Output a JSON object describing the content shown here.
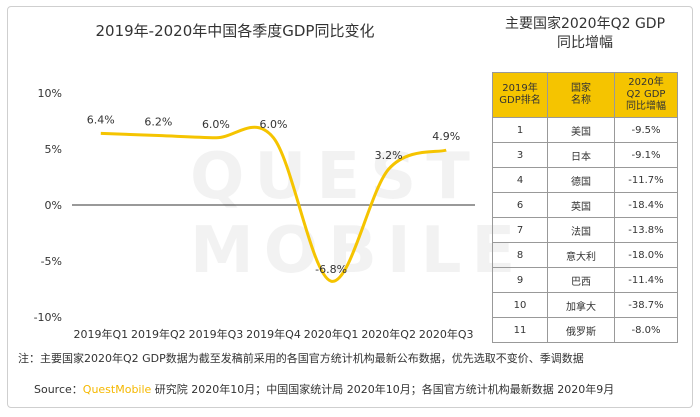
{
  "chart_data": {
    "type": "line",
    "title": "2019年-2020年中国各季度GDP同比变化",
    "categories": [
      "2019年Q1",
      "2019年Q2",
      "2019年Q3",
      "2019年Q4",
      "2020年Q1",
      "2020年Q2",
      "2020年Q3"
    ],
    "series": [
      {
        "values": [
          6.4,
          6.2,
          6.0,
          6.0,
          -6.8,
          3.2,
          4.9
        ]
      }
    ],
    "data_labels": [
      "6.4%",
      "6.2%",
      "6.0%",
      "6.0%",
      "-6.8%",
      "3.2%",
      "4.9%"
    ],
    "y_ticks": [
      "10%",
      "5%",
      "0%",
      "-5%",
      "-10%"
    ],
    "ylim": [
      -10,
      10
    ],
    "line_color": "#f5c400",
    "grid": false
  },
  "table": {
    "title_line1": "主要国家2020年Q2 GDP",
    "title_line2": "同比增幅",
    "headers": [
      [
        "2019年",
        "GDP排名"
      ],
      [
        "国家",
        "名称"
      ],
      [
        "2020年",
        "Q2 GDP",
        "同比增幅"
      ]
    ],
    "rows": [
      [
        "1",
        "美国",
        "-9.5%"
      ],
      [
        "3",
        "日本",
        "-9.1%"
      ],
      [
        "4",
        "德国",
        "-11.7%"
      ],
      [
        "6",
        "英国",
        "-18.4%"
      ],
      [
        "7",
        "法国",
        "-13.8%"
      ],
      [
        "8",
        "意大利",
        "-18.0%"
      ],
      [
        "9",
        "巴西",
        "-11.4%"
      ],
      [
        "10",
        "加拿大",
        "-38.7%"
      ],
      [
        "11",
        "俄罗斯",
        "-8.0%"
      ]
    ],
    "header_color": "#f5c400"
  },
  "footer": {
    "note": "注：主要国家2020年Q2 GDP数据为截至发稿前采用的各国官方统计机构最新公布数据，优先选取不变价、季调数据",
    "source_prefix": "Source：",
    "source_brand": "QuestMobile",
    "source_rest": " 研究院 2020年10月；中国国家统计局 2020年10月；各国官方统计机构最新数据 2020年9月"
  },
  "watermark": "QUEST MOBILE"
}
